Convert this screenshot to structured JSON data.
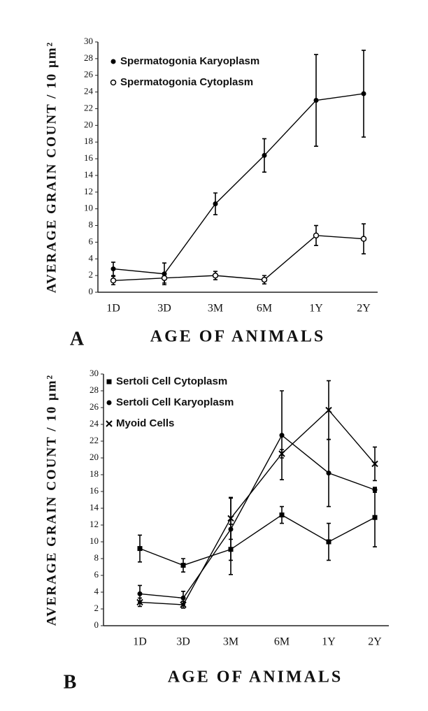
{
  "chart_data": [
    {
      "type": "line",
      "panel": "A",
      "y_label": "AVERAGE GRAIN COUNT / 10 μm²",
      "x_label": "AGE OF ANIMALS",
      "categories": [
        "1D",
        "3D",
        "3M",
        "6M",
        "1Y",
        "2Y"
      ],
      "ylim": [
        0,
        30
      ],
      "yticks": [
        0,
        2,
        4,
        6,
        8,
        10,
        12,
        14,
        16,
        18,
        20,
        22,
        24,
        26,
        28,
        30
      ],
      "series": [
        {
          "name": "Spermatogonia Karyoplasm",
          "color": "#000000",
          "marker": "filled-circle",
          "values": [
            2.8,
            2.2,
            10.6,
            16.4,
            23,
            23.8
          ],
          "errors": [
            0.8,
            1.3,
            1.3,
            2,
            5.5,
            5.2
          ]
        },
        {
          "name": "Spermatogonia Cytoplasm",
          "color": "#000000",
          "marker": "open-circle",
          "values": [
            1.4,
            1.7,
            2,
            1.5,
            6.8,
            6.4
          ],
          "errors": [
            0.5,
            0.6,
            0.5,
            0.5,
            1.2,
            1.8
          ]
        }
      ]
    },
    {
      "type": "line",
      "panel": "B",
      "y_label": "AVERAGE GRAIN COUNT / 10 μm²",
      "x_label": "AGE OF ANIMALS",
      "categories": [
        "1D",
        "3D",
        "3M",
        "6M",
        "1Y",
        "2Y"
      ],
      "ylim": [
        0,
        30
      ],
      "yticks": [
        0,
        2,
        4,
        6,
        8,
        10,
        12,
        14,
        16,
        18,
        20,
        22,
        24,
        26,
        28,
        30
      ],
      "series": [
        {
          "name": "Sertoli Cell Cytoplasm",
          "color": "#000000",
          "marker": "square",
          "values": [
            9.2,
            7.2,
            9.1,
            13.2,
            10,
            12.9
          ],
          "errors": [
            1.6,
            0.8,
            3,
            1,
            2.2,
            3.5
          ]
        },
        {
          "name": "Sertoli Cell Karyoplasm",
          "color": "#000000",
          "marker": "filled-circle",
          "values": [
            3.8,
            3.3,
            11.5,
            22.7,
            18.2,
            16.2
          ],
          "errors": [
            1,
            0.8,
            3.7,
            5.3,
            4,
            0.3
          ]
        },
        {
          "name": "Myoid Cells",
          "color": "#000000",
          "marker": "cross",
          "values": [
            2.8,
            2.5,
            12.8,
            20.5,
            25.7,
            19.3
          ],
          "errors": [
            0.5,
            0.4,
            2.5,
            0.5,
            3.5,
            2
          ]
        }
      ]
    }
  ]
}
